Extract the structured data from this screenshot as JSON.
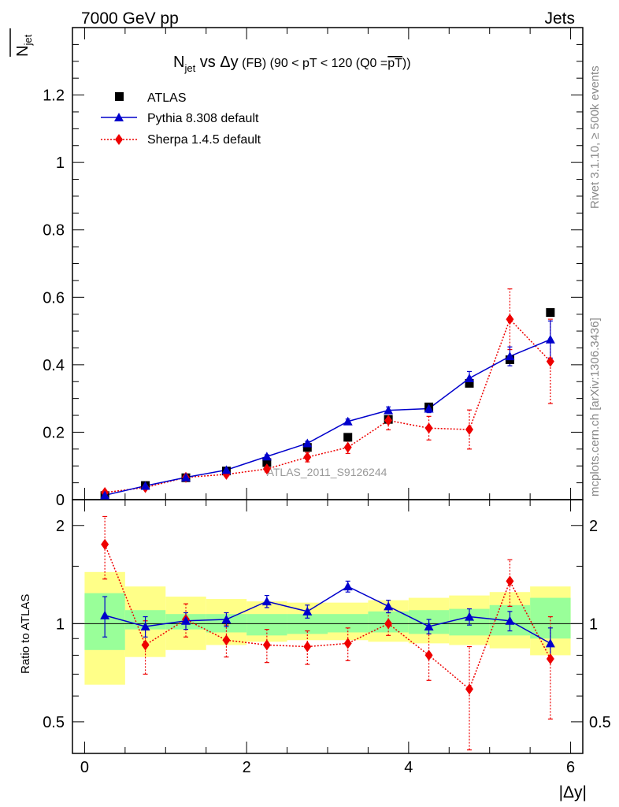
{
  "header": {
    "left": "7000 GeV pp",
    "right": "Jets"
  },
  "side_labels": {
    "rivet": "Rivet 3.1.10, ≥ 500k events",
    "mcplots": "mcplots.cern.ch [arXiv:1306.3436]"
  },
  "title": {
    "main": "N",
    "sub": "jet",
    "vs": " vs Δy",
    "extra": " (FB) (90 < pT < 120 (Q0 =",
    "overline": "pT",
    "close": "))"
  },
  "ylabel_top": {
    "main": "N",
    "sub": "jet"
  },
  "ylabel_bottom": "Ratio to ATLAS",
  "xlabel": "|Δy|",
  "watermark": "ATLAS_2011_S9126244",
  "legend": {
    "atlas": "ATLAS",
    "pythia": "Pythia 8.308 default",
    "sherpa": "Sherpa 1.4.5 default"
  },
  "colors": {
    "atlas": "#000000",
    "pythia": "#0000cc",
    "sherpa": "#ee0000",
    "band_inner": "#99ff99",
    "band_outer": "#ffff88"
  },
  "top_ticks": [
    "0",
    "0.2",
    "0.4",
    "0.6",
    "0.8",
    "1",
    "1.2"
  ],
  "bottom_ticks": [
    "0.5",
    "1",
    "2"
  ],
  "x_ticks": [
    "0",
    "2",
    "4",
    "6"
  ],
  "chart_data": {
    "type": "scatter",
    "title": "Njet vs Δy (FB) (90 < pT < 120 (Q0 = avg pT))",
    "xlabel": "|Δy|",
    "ylabel": "Njet",
    "xlim": [
      -0.15,
      6.15
    ],
    "ylim": [
      0,
      1.4
    ],
    "x": [
      0.25,
      0.75,
      1.25,
      1.75,
      2.25,
      2.75,
      3.25,
      3.75,
      4.25,
      4.75,
      5.25,
      5.75
    ],
    "series": [
      {
        "name": "ATLAS",
        "values": [
          0.012,
          0.042,
          0.065,
          0.085,
          0.11,
          0.155,
          0.185,
          0.238,
          0.275,
          0.345,
          0.415,
          0.555
        ]
      },
      {
        "name": "Pythia 8.308 default",
        "values": [
          0.013,
          0.041,
          0.066,
          0.088,
          0.128,
          0.167,
          0.232,
          0.265,
          0.27,
          0.36,
          0.425,
          0.475
        ],
        "errors": [
          0.002,
          0.003,
          0.003,
          0.004,
          0.005,
          0.006,
          0.007,
          0.01,
          0.012,
          0.02,
          0.028,
          0.055
        ]
      },
      {
        "name": "Sherpa 1.4.5 default",
        "values": [
          0.021,
          0.036,
          0.066,
          0.075,
          0.091,
          0.126,
          0.155,
          0.235,
          0.212,
          0.208,
          0.535,
          0.41
        ],
        "errors": [
          0.003,
          0.004,
          0.006,
          0.006,
          0.009,
          0.014,
          0.018,
          0.028,
          0.035,
          0.058,
          0.09,
          0.125
        ]
      }
    ],
    "ratio": {
      "ylabel": "Ratio to ATLAS",
      "ylim": [
        0.4,
        2.4
      ],
      "log_scale": true,
      "pythia": [
        1.06,
        0.98,
        1.02,
        1.03,
        1.17,
        1.09,
        1.3,
        1.13,
        0.98,
        1.05,
        1.02,
        0.87
      ],
      "pythia_errors": [
        0.15,
        0.07,
        0.06,
        0.05,
        0.05,
        0.05,
        0.05,
        0.05,
        0.05,
        0.06,
        0.07,
        0.1
      ],
      "sherpa": [
        1.75,
        0.86,
        1.03,
        0.89,
        0.86,
        0.85,
        0.87,
        1.0,
        0.8,
        0.63,
        1.35,
        0.78
      ],
      "sherpa_errors": [
        0.38,
        0.16,
        0.12,
        0.1,
        0.1,
        0.1,
        0.1,
        0.08,
        0.13,
        0.22,
        0.22,
        0.27
      ],
      "band_inner": [
        [
          0.83,
          1.24
        ],
        [
          0.96,
          1.1
        ],
        [
          0.96,
          1.07
        ],
        [
          0.94,
          1.07
        ],
        [
          0.92,
          1.07
        ],
        [
          0.93,
          1.07
        ],
        [
          0.94,
          1.07
        ],
        [
          0.94,
          1.09
        ],
        [
          0.93,
          1.1
        ],
        [
          0.92,
          1.11
        ],
        [
          0.92,
          1.14
        ],
        [
          0.9,
          1.2
        ]
      ],
      "band_outer": [
        [
          0.65,
          1.44
        ],
        [
          0.79,
          1.3
        ],
        [
          0.83,
          1.21
        ],
        [
          0.86,
          1.19
        ],
        [
          0.88,
          1.17
        ],
        [
          0.89,
          1.16
        ],
        [
          0.89,
          1.16
        ],
        [
          0.88,
          1.18
        ],
        [
          0.87,
          1.2
        ],
        [
          0.86,
          1.22
        ],
        [
          0.84,
          1.25
        ],
        [
          0.8,
          1.3
        ]
      ]
    }
  }
}
